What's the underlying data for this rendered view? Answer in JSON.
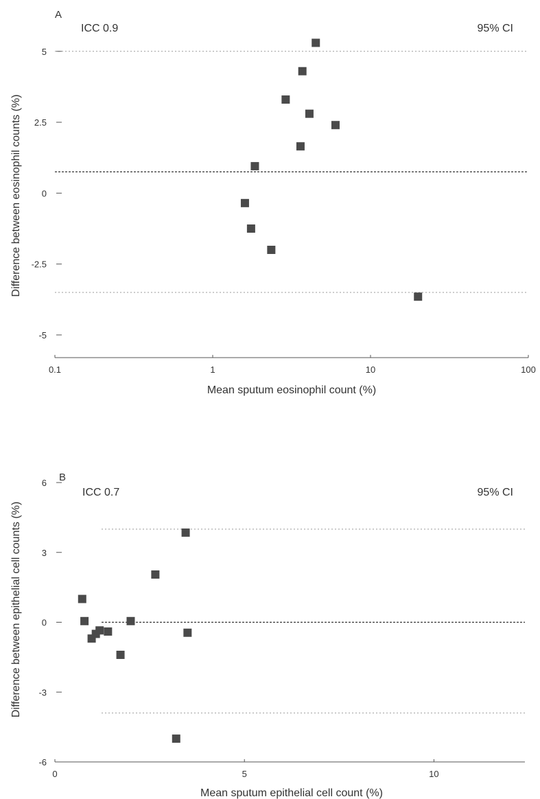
{
  "chart_data": [
    {
      "panel_label": "A",
      "type": "scatter",
      "xscale": "log",
      "xlim": [
        0.1,
        100
      ],
      "ylim": [
        -5.8,
        5.6
      ],
      "xticks": [
        0.1,
        1,
        10,
        100
      ],
      "xtick_labels": [
        "0.1",
        "1",
        "10",
        "100"
      ],
      "yticks": [
        -5,
        -2.5,
        0,
        2.5,
        5
      ],
      "ytick_labels": [
        "-5",
        "-2.5",
        "0",
        "2.5",
        "5"
      ],
      "xlabel": "Mean sputum eosinophil count (%)",
      "ylabel": "Difference between eosinophil counts (%)",
      "annotation_left": "ICC 0.9",
      "annotation_right": "95% CI",
      "grid": false,
      "reference_lines": [
        {
          "y": 5.0,
          "style": "dotted"
        },
        {
          "y": 0.75,
          "style": "dashed"
        },
        {
          "y": -3.5,
          "style": "dotted"
        }
      ],
      "points": [
        {
          "x": 4.5,
          "y": 5.3
        },
        {
          "x": 3.7,
          "y": 4.3
        },
        {
          "x": 2.9,
          "y": 3.3
        },
        {
          "x": 4.1,
          "y": 2.8
        },
        {
          "x": 6.0,
          "y": 2.4
        },
        {
          "x": 3.6,
          "y": 1.65
        },
        {
          "x": 1.85,
          "y": 0.95
        },
        {
          "x": 1.6,
          "y": -0.35
        },
        {
          "x": 1.75,
          "y": -1.25
        },
        {
          "x": 2.35,
          "y": -2.0
        },
        {
          "x": 20.0,
          "y": -3.65
        }
      ]
    },
    {
      "panel_label": "B",
      "type": "scatter",
      "xscale": "linear",
      "xlim": [
        0,
        12.4
      ],
      "ylim": [
        -6,
        6
      ],
      "xticks": [
        0,
        5,
        10
      ],
      "xtick_labels": [
        "0",
        "5",
        "10"
      ],
      "yticks": [
        -6,
        -3,
        0,
        3,
        6
      ],
      "ytick_labels": [
        "-6",
        "-3",
        "0",
        "3",
        "6"
      ],
      "xlabel": "Mean sputum epithelial cell count (%)",
      "ylabel": "Difference between epithelial cell counts (%)",
      "annotation_left": "ICC 0.7",
      "annotation_right": "95% CI",
      "grid": false,
      "reference_lines": [
        {
          "y": 4.0,
          "style": "dotted"
        },
        {
          "y": 0.0,
          "style": "dashed"
        },
        {
          "y": -3.9,
          "style": "dotted"
        }
      ],
      "points": [
        {
          "x": 0.72,
          "y": 1.0
        },
        {
          "x": 0.78,
          "y": 0.05
        },
        {
          "x": 0.97,
          "y": -0.7
        },
        {
          "x": 1.08,
          "y": -0.5
        },
        {
          "x": 1.18,
          "y": -0.35
        },
        {
          "x": 1.4,
          "y": -0.4
        },
        {
          "x": 1.73,
          "y": -1.4
        },
        {
          "x": 2.0,
          "y": 0.05
        },
        {
          "x": 2.65,
          "y": 2.05
        },
        {
          "x": 3.45,
          "y": 3.85
        },
        {
          "x": 3.5,
          "y": -0.45
        },
        {
          "x": 3.2,
          "y": -5.0
        }
      ]
    }
  ]
}
